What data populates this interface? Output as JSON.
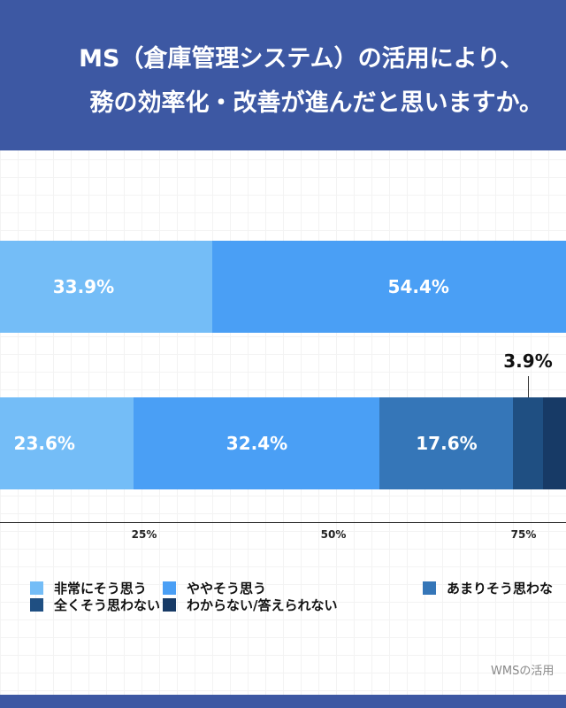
{
  "header": {
    "title_line1": "MS（倉庫管理システム）の活用により、",
    "title_line2": "務の効率化・改善が進んだと思いますか。"
  },
  "colors": {
    "header": "#3d58a3",
    "categories": [
      "#74bdf7",
      "#4a9ff5",
      "#3576b8",
      "#1f4f82",
      "#173a66"
    ]
  },
  "chart_data": {
    "type": "bar",
    "orientation": "horizontal-stacked-percent",
    "x_ticks": [
      "25%",
      "50%",
      "75%"
    ],
    "xlim": [
      0,
      100
    ],
    "legend": [
      "非常にそう思う",
      "ややそう思う",
      "あまりそう思わな",
      "全くそう思わない",
      "わからない/答えられない"
    ],
    "legend_placement": "bottom",
    "series_rows": [
      {
        "values": [
          33.9,
          54.4,
          null,
          null,
          null
        ],
        "labels": [
          "33.9%",
          "54.4%",
          "",
          "",
          ""
        ]
      },
      {
        "values": [
          23.6,
          32.4,
          17.6,
          3.9,
          null
        ],
        "labels": [
          "23.6%",
          "32.4%",
          "17.6%",
          "",
          ""
        ],
        "callout": "3.9%"
      }
    ]
  },
  "source": "WMSの活用"
}
